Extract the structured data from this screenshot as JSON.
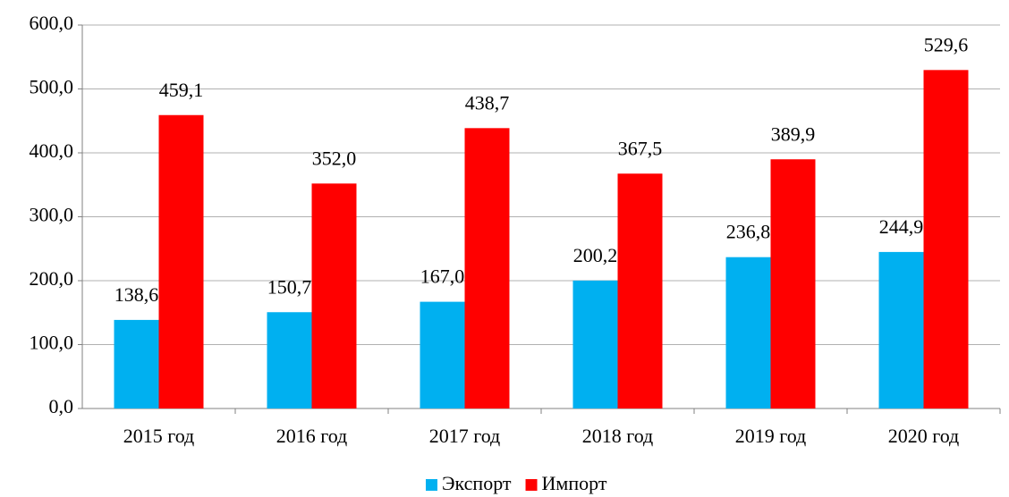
{
  "chart_data": {
    "type": "bar",
    "categories": [
      "2015 год",
      "2016 год",
      "2017 год",
      "2018 год",
      "2019 год",
      "2020 год"
    ],
    "series": [
      {
        "name": "Экспорт",
        "color": "#00b0f0",
        "values": [
          138.6,
          150.7,
          167.0,
          200.2,
          236.8,
          244.9
        ],
        "value_labels": [
          "138,6",
          "150,7",
          "167,0",
          "200,2",
          "236,8",
          "244,9"
        ]
      },
      {
        "name": "Импорт",
        "color": "#ff0000",
        "values": [
          459.1,
          352.0,
          438.7,
          367.5,
          389.9,
          529.6
        ],
        "value_labels": [
          "459,1",
          "352,0",
          "438,7",
          "367,5",
          "389,9",
          "529,6"
        ]
      }
    ],
    "ylim": [
      0,
      600
    ],
    "yticks": [
      {
        "value": 0,
        "label": "0,0"
      },
      {
        "value": 100,
        "label": "100,0"
      },
      {
        "value": 200,
        "label": "200,0"
      },
      {
        "value": 300,
        "label": "300,0"
      },
      {
        "value": 400,
        "label": "400,0"
      },
      {
        "value": 500,
        "label": "500,0"
      },
      {
        "value": 600,
        "label": "600,0"
      }
    ],
    "grid": true,
    "legend": "bottom"
  }
}
